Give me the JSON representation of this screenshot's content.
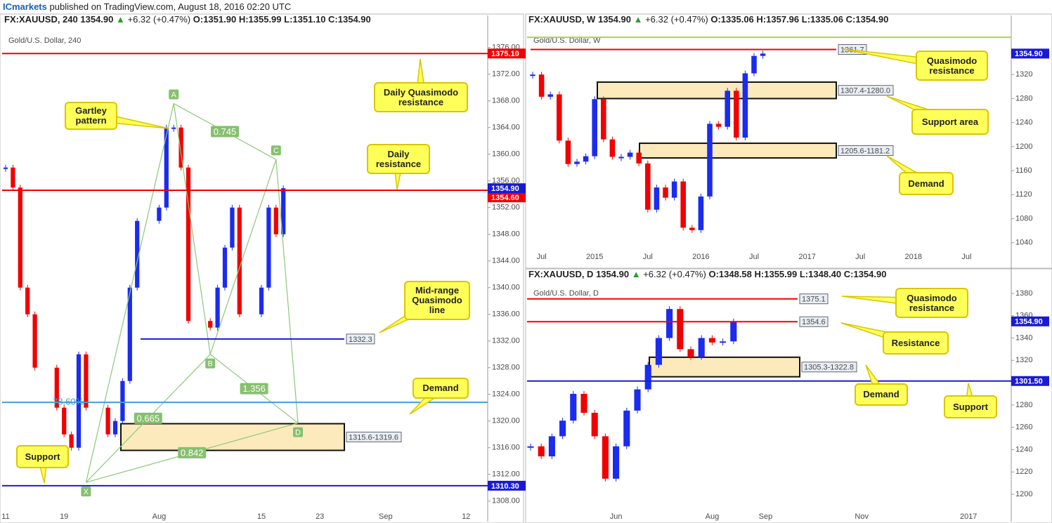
{
  "header": {
    "brand": "ICmarkets",
    "published": "published on TradingView.com, August 18, 2016 02:20 UTC"
  },
  "chart_data": [
    {
      "type": "candlestick",
      "symbol": "FX:XAUUSD, 240",
      "price": "1354.90",
      "change": "+6.32 (+0.47%)",
      "ohlc": [
        "O:1351.90",
        "H:1355.99",
        "L:1351.10",
        "C:1354.90"
      ],
      "title": "Gold/U.S. Dollar, 240",
      "categories": [
        "11",
        null,
        null,
        null,
        null,
        null,
        null,
        null,
        "19",
        null,
        null,
        null,
        null,
        null,
        null,
        null,
        null,
        null,
        null,
        null,
        null,
        "Aug",
        null,
        null,
        null,
        null,
        null,
        null,
        null,
        null,
        null,
        null,
        null,
        null,
        null,
        "15",
        null,
        null,
        null,
        null,
        null,
        null,
        null,
        "23",
        null,
        null,
        null,
        null,
        null,
        null,
        null,
        null,
        "Sep",
        null,
        null,
        null,
        null,
        null,
        null,
        null,
        null,
        null,
        null,
        "12",
        null,
        null
      ],
      "values": [
        1358,
        1355,
        1340,
        1336,
        1328,
        null,
        null,
        1322,
        1318,
        1316,
        1330,
        1322,
        null,
        null,
        1318,
        1320,
        1326,
        1340,
        1350,
        null,
        null,
        1352,
        1364,
        1364,
        1358,
        1335,
        null,
        null,
        1334,
        1340,
        1346,
        1352,
        1336,
        null,
        null,
        1340,
        1352,
        1348,
        1354.9,
        null,
        null,
        null,
        null,
        null,
        null,
        null,
        null,
        null,
        null,
        null,
        null,
        null,
        null,
        null,
        null,
        null,
        null,
        null,
        null,
        null,
        null,
        null,
        null,
        null,
        null,
        null
      ],
      "up_color": "#1b2bf0",
      "down_color": "#f20000",
      "ylim": [
        1306.5,
        1378.7
      ],
      "yticks": [
        {
          "value": 1376,
          "label": "1376.00"
        },
        {
          "value": 1372,
          "label": "1372.00"
        },
        {
          "value": 1368,
          "label": "1368.00"
        },
        {
          "value": 1364,
          "label": "1364.00"
        },
        {
          "value": 1360,
          "label": "1360.00"
        },
        {
          "value": 1356,
          "label": "1356.00"
        },
        {
          "value": 1352,
          "label": "1352.00"
        },
        {
          "value": 1348,
          "label": "1348.00"
        },
        {
          "value": 1344,
          "label": "1344.00"
        },
        {
          "value": 1340,
          "label": "1340.00"
        },
        {
          "value": 1336,
          "label": "1336.00"
        },
        {
          "value": 1332,
          "label": "1332.00"
        },
        {
          "value": 1328,
          "label": "1328.00"
        },
        {
          "value": 1324,
          "label": "1324.00"
        },
        {
          "value": 1320,
          "label": "1320.00"
        },
        {
          "value": 1316,
          "label": "1316.00"
        },
        {
          "value": 1312,
          "label": "1312.00"
        },
        {
          "value": 1308,
          "label": "1308.00"
        }
      ],
      "last": {
        "value": 1354.9,
        "label": "1354.90"
      },
      "levels": [
        {
          "value": 1375.1,
          "label": "1375.10",
          "color": "#f20000",
          "style": "axis"
        },
        {
          "value": 1354.6,
          "label": "1354.60",
          "color": "#f20000",
          "style": "axis"
        },
        {
          "value": 1332.3,
          "color": "#1a1ad6",
          "style": "box"
        },
        {
          "value": 1322.8,
          "name": "78.60%",
          "color": "#3f9fd6",
          "style": "left"
        },
        {
          "value": 1310.3,
          "label": "1310.30",
          "color": "#1a1ad6",
          "style": "axis"
        }
      ],
      "zones": [
        {
          "low": 1315.6,
          "high": 1319.6,
          "label": "1315.6-1319.6"
        }
      ],
      "pattern": {
        "points": [
          {
            "name": "X",
            "x": 11,
            "y": 1310.8
          },
          {
            "name": "A",
            "x": 23,
            "y": 1367.6
          },
          {
            "name": "B",
            "x": 28,
            "y": 1330
          },
          {
            "name": "C",
            "x": 37,
            "y": 1359.2
          },
          {
            "name": "D",
            "x": 40,
            "y": 1319.7
          }
        ],
        "ratios": [
          {
            "from": "A",
            "to": "C",
            "label": "0.745"
          },
          {
            "from": "B",
            "to": "D",
            "label": "1.356"
          },
          {
            "from": "X",
            "to": "B",
            "label": "0.665"
          },
          {
            "from": "X",
            "to": "D",
            "label": "0.842"
          }
        ]
      },
      "annotations": [
        "Gartley pattern",
        "Daily Quasimodo resistance",
        "Daily resistance",
        "Mid-range Quasimodo line",
        "Demand",
        "Support"
      ]
    },
    {
      "type": "candlestick",
      "symbol": "FX:XAUUSD, W",
      "price": "1354.90",
      "change": "+6.32 (+0.47%)",
      "ohlc": [
        "O:1335.06",
        "H:1357.96",
        "L:1335.06",
        "C:1354.90"
      ],
      "title": "Gold/U.S. Dollar, W",
      "categories": [
        null,
        "Jul",
        null,
        null,
        null,
        null,
        null,
        "2015",
        null,
        null,
        null,
        null,
        null,
        "Jul",
        null,
        null,
        null,
        null,
        null,
        "2016",
        null,
        null,
        null,
        null,
        null,
        "Jul",
        null,
        null,
        null,
        null,
        null,
        "2017",
        null,
        null,
        null,
        null,
        null,
        "Jul",
        null,
        null,
        null,
        null,
        null,
        "2018",
        null,
        null,
        null,
        null,
        null,
        "Jul",
        null,
        null,
        null,
        null,
        null,
        null,
        null,
        null
      ],
      "values": [
        1320,
        1283,
        1287,
        1210,
        1171,
        1175,
        1184,
        1279,
        1212,
        1183,
        1183,
        1190,
        1172,
        1095,
        1132,
        1115,
        1142,
        1065,
        1061,
        1117,
        1238,
        1233,
        1293,
        1215,
        1322,
        1351,
        1354.9,
        null,
        null,
        null,
        null,
        null,
        null,
        null,
        null,
        null,
        null,
        null,
        null,
        null,
        null,
        null,
        null,
        null,
        null,
        null,
        null,
        null,
        null,
        null,
        null,
        null,
        null,
        null,
        null,
        null,
        null,
        null
      ],
      "up_color": "#1b2bf0",
      "down_color": "#f20000",
      "ylim": [
        1000,
        1395
      ],
      "yticks": [
        1320,
        1280,
        1240,
        1200,
        1160,
        1120,
        1080,
        1040
      ],
      "last": {
        "value": 1354.9,
        "label": "1354.90"
      },
      "levels": [
        {
          "value": 1361.7,
          "color": "#f20000",
          "style": "box"
        },
        {
          "value": 1382,
          "color": "#a8d44e",
          "style": "full"
        }
      ],
      "zones": [
        {
          "low": 1280.0,
          "high": 1307.4,
          "label": "1307.4-1280.0"
        },
        {
          "low": 1181.2,
          "high": 1205.6,
          "label": "1205.6-1181.2"
        }
      ],
      "annotations": [
        "Quasimodo resistance",
        "Support area",
        "Demand"
      ]
    },
    {
      "type": "candlestick",
      "symbol": "FX:XAUUSD, D",
      "price": "1354.90",
      "change": "+6.32 (+0.47%)",
      "ohlc": [
        "O:1348.58",
        "H:1355.99",
        "L:1348.40",
        "C:1354.90"
      ],
      "title": "Gold/U.S. Dollar, D",
      "categories": [
        null,
        null,
        null,
        null,
        null,
        null,
        null,
        null,
        "Jun",
        null,
        null,
        null,
        null,
        null,
        null,
        null,
        null,
        "Aug",
        null,
        null,
        null,
        null,
        "Sep",
        null,
        null,
        null,
        null,
        null,
        null,
        null,
        null,
        "Nov",
        null,
        null,
        null,
        null,
        null,
        null,
        null,
        null,
        null,
        "2017",
        null,
        null,
        null,
        null
      ],
      "values": [
        1243,
        1234,
        1252,
        1266,
        1290,
        1273,
        1252,
        1214,
        1243,
        1275,
        1294,
        1316,
        1340,
        1366,
        1330,
        1323,
        1340,
        1336,
        1337,
        1354.9,
        null,
        null,
        null,
        null,
        null,
        null,
        null,
        null,
        null,
        null,
        null,
        null,
        null,
        null,
        null,
        null,
        null,
        null,
        null,
        null,
        null,
        null,
        null,
        null,
        null,
        null
      ],
      "up_color": "#1b2bf0",
      "down_color": "#f20000",
      "ylim": [
        1185,
        1390
      ],
      "yticks": [
        1380,
        1360,
        1340,
        1320,
        1280,
        1260,
        1240,
        1220,
        1200
      ],
      "last": {
        "value": 1354.9,
        "label": "1354.90"
      },
      "levels": [
        {
          "value": 1375.1,
          "color": "#f20000",
          "style": "box"
        },
        {
          "value": 1354.6,
          "color": "#f20000",
          "style": "box"
        },
        {
          "value": 1301.5,
          "label": "1301.50",
          "color": "#1a1ad6",
          "style": "axis"
        }
      ],
      "zones": [
        {
          "low": 1305.3,
          "high": 1322.8,
          "label": "1305.3-1322.8"
        }
      ],
      "annotations": [
        "Quasimodo resistance",
        "Resistance",
        "Demand",
        "Support"
      ]
    }
  ]
}
